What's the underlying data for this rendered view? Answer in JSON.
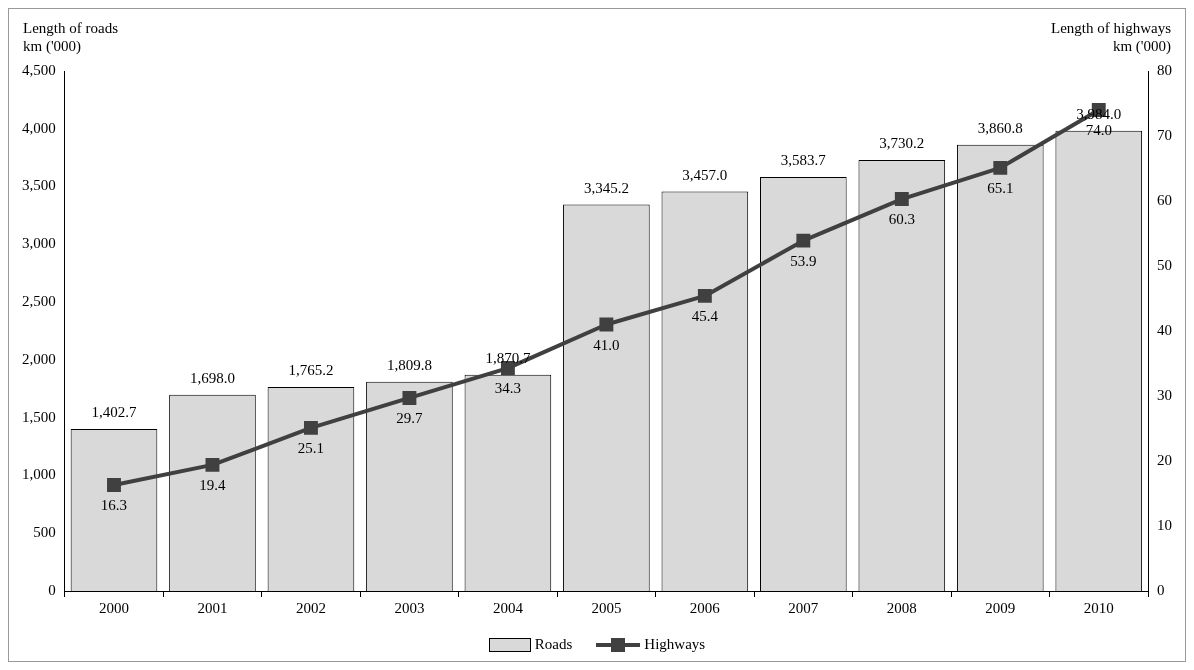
{
  "chart_data": {
    "type": "bar",
    "ylabel": "Length of roads km ('000)",
    "y2label": "Length of highways km ('000)",
    "categories": [
      "2000",
      "2001",
      "2002",
      "2003",
      "2004",
      "2005",
      "2006",
      "2007",
      "2008",
      "2009",
      "2010"
    ],
    "series": [
      {
        "name": "Roads",
        "color": "#d9d9d9",
        "values": [
          1402.7,
          1698.0,
          1765.2,
          1809.8,
          1870.7,
          3345.2,
          3457.0,
          3583.7,
          3730.2,
          3860.8,
          3984.0
        ],
        "value_labels": [
          "1,402.7",
          "1,698.0",
          "1,765.2",
          "1,809.8",
          "1,870.7",
          "3,345.2",
          "3,457.0",
          "3,583.7",
          "3,730.2",
          "3,860.8",
          "3,984.0"
        ]
      },
      {
        "name": "Highways",
        "type": "line",
        "axis": "y2",
        "color": "#404040",
        "marker": "square",
        "values": [
          16.3,
          19.4,
          25.1,
          29.7,
          34.3,
          41.0,
          45.4,
          53.9,
          60.3,
          65.1,
          74.0
        ],
        "value_labels": [
          "16.3",
          "19.4",
          "25.1",
          "29.7",
          "34.3",
          "41.0",
          "45.4",
          "53.9",
          "60.3",
          "65.1",
          "74.0"
        ]
      }
    ],
    "ylim": [
      0,
      4500
    ],
    "yticks": [
      0,
      500,
      {
        "value": 1000,
        "label": "1,000"
      },
      {
        "value": 1500,
        "label": "1,500"
      },
      {
        "value": 2000,
        "label": "2,000"
      },
      {
        "value": 2500,
        "label": "2,500"
      },
      {
        "value": 3000,
        "label": "3,000"
      },
      {
        "value": 3500,
        "label": "3,500"
      },
      {
        "value": 4000,
        "label": "4,000"
      },
      {
        "value": 4500,
        "label": "4,500"
      }
    ],
    "y2lim": [
      0,
      80
    ],
    "y2ticks": [
      0,
      10,
      20,
      30,
      40,
      50,
      60,
      70,
      80
    ],
    "legend": "bottom"
  }
}
